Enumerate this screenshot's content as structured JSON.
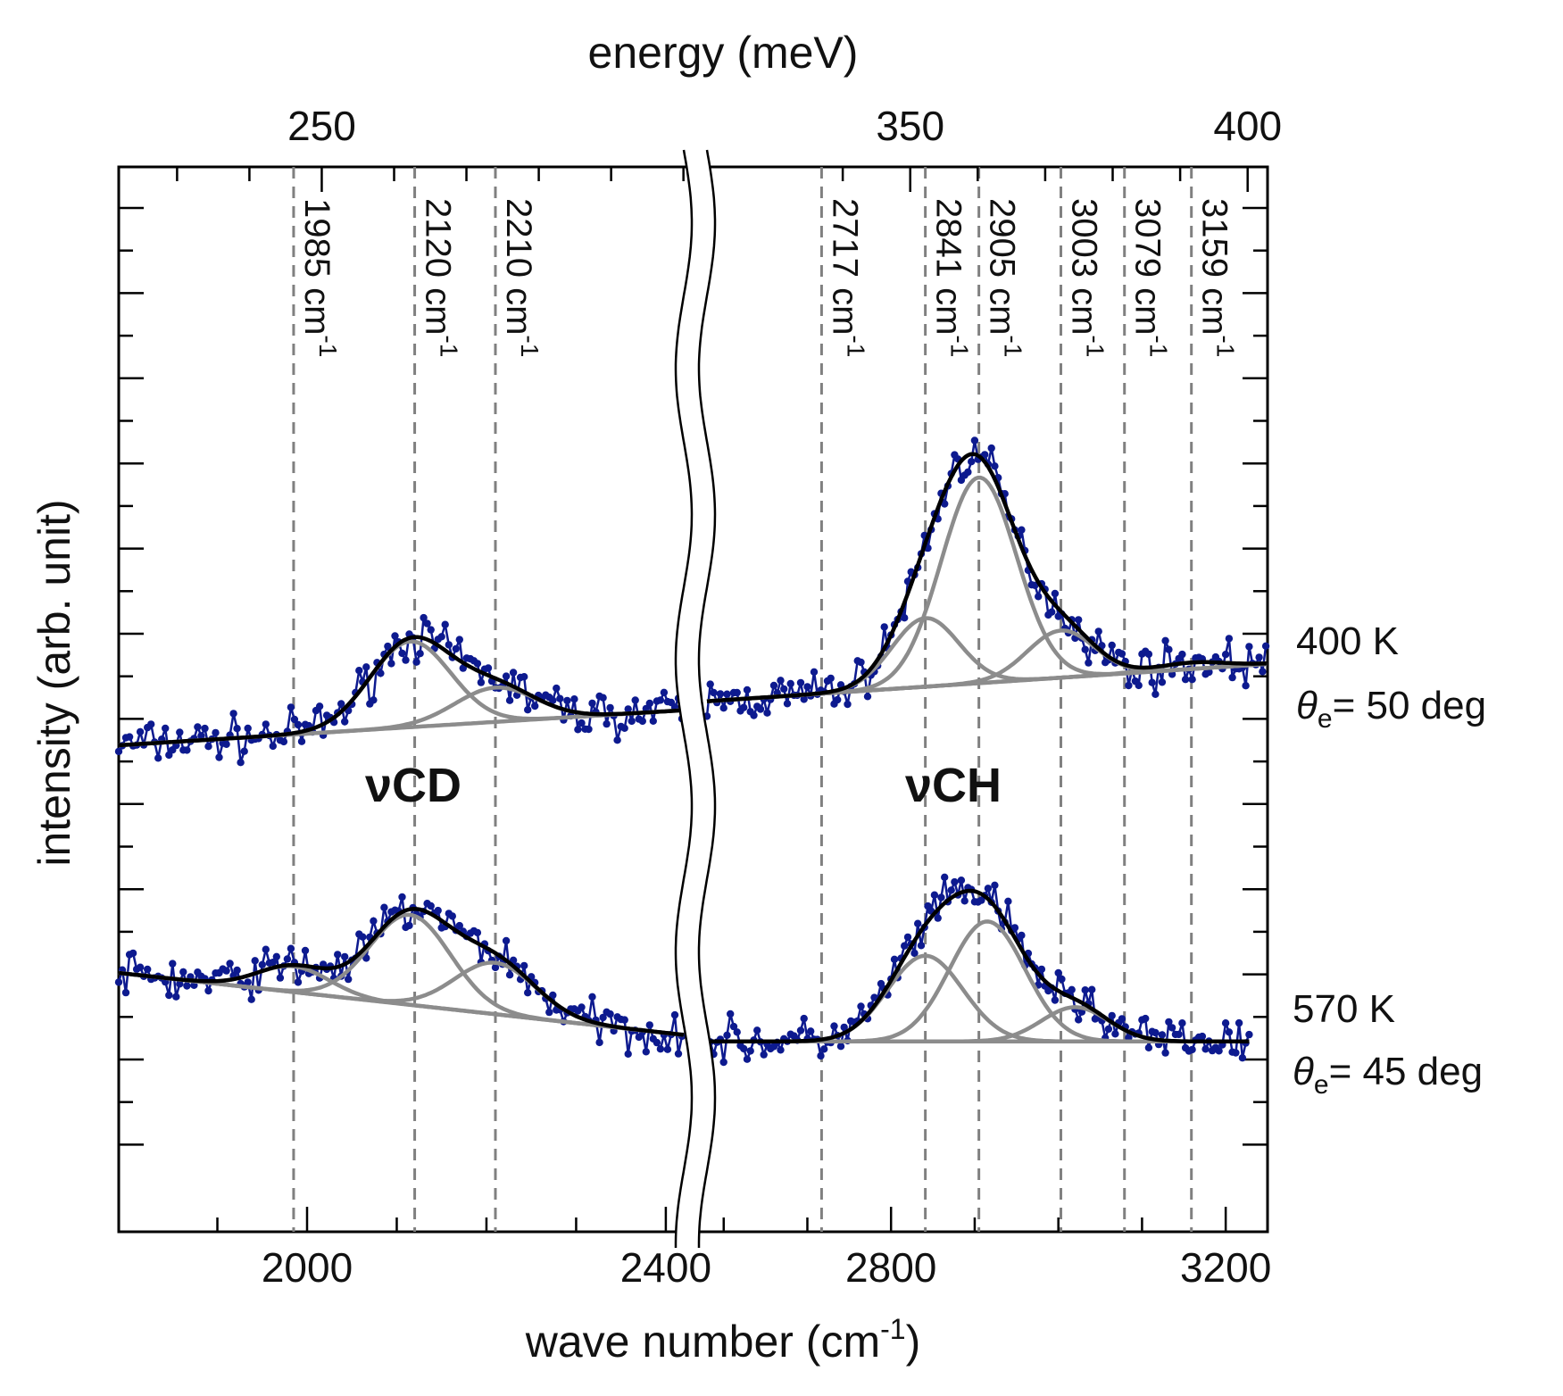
{
  "chart_data": {
    "type": "line",
    "title": "",
    "xlabel_bottom": "wave number (cm",
    "xlabel_bottom_sup": "-1",
    "xlabel_bottom_close": ")",
    "xlabel_top": "energy (meV)",
    "ylabel": "intensity (arb. unit)",
    "axis_break": {
      "from": 2420,
      "to": 2580
    },
    "x_left_range": [
      1790,
      2420
    ],
    "x_right_range": [
      2580,
      3250
    ],
    "bottom_ticks": [
      {
        "value": 2000,
        "label": "2000"
      },
      {
        "value": 2400,
        "label": "2400"
      },
      {
        "value": 2800,
        "label": "2800"
      },
      {
        "value": 3200,
        "label": "3200"
      }
    ],
    "top_ticks": [
      {
        "value": 250,
        "label": "250"
      },
      {
        "value": 350,
        "label": "350"
      },
      {
        "value": 400,
        "label": "400"
      }
    ],
    "peaks": [
      {
        "value": 1985,
        "label": "1985 cm",
        "sup": "-1"
      },
      {
        "value": 2120,
        "label": "2120 cm",
        "sup": "-1"
      },
      {
        "value": 2210,
        "label": "2210 cm",
        "sup": "-1"
      },
      {
        "value": 2717,
        "label": "2717 cm",
        "sup": "-1"
      },
      {
        "value": 2841,
        "label": "2841 cm",
        "sup": "-1"
      },
      {
        "value": 2905,
        "label": "2905 cm",
        "sup": "-1"
      },
      {
        "value": 3003,
        "label": "3003 cm",
        "sup": "-1"
      },
      {
        "value": 3079,
        "label": "3079 cm",
        "sup": "-1"
      },
      {
        "value": 3159,
        "label": "3159 cm",
        "sup": "-1"
      }
    ],
    "band_labels": [
      "νCD",
      "νCH"
    ],
    "colors": {
      "data": "#0d1a8f",
      "fit_total": "#000000",
      "fit_component": "#8c8c8c",
      "dashed": "#808080"
    },
    "series": [
      {
        "name": "400 K",
        "angle_symbol": "θ",
        "angle_sub": "e",
        "angle_text": "= 50 deg",
        "baseline": [
          [
            1790,
            0.0
          ],
          [
            3250,
            1.9
          ]
        ],
        "components": [
          {
            "center": 2115,
            "height": 2.0,
            "width": 45
          },
          {
            "center": 2210,
            "height": 0.8,
            "width": 45
          },
          {
            "center": 2841,
            "height": 1.6,
            "width": 40
          },
          {
            "center": 2905,
            "height": 4.8,
            "width": 45
          },
          {
            "center": 3003,
            "height": 1.1,
            "width": 40
          },
          {
            "center": 3159,
            "height": 0.15,
            "width": 40
          }
        ]
      },
      {
        "name": "570 K",
        "angle_symbol": "θ",
        "angle_sub": "e",
        "angle_text": "= 45 deg",
        "baseline_left": [
          [
            1790,
            0.0
          ],
          [
            2400,
            -1.4
          ]
        ],
        "baseline_right": [
          [
            2600,
            -1.6
          ],
          [
            3230,
            -1.6
          ]
        ],
        "components": [
          {
            "center": 1985,
            "height": 0.6,
            "width": 40
          },
          {
            "center": 2115,
            "height": 2.1,
            "width": 45
          },
          {
            "center": 2210,
            "height": 1.2,
            "width": 45
          },
          {
            "center": 2841,
            "height": 2.0,
            "width": 45
          },
          {
            "center": 2915,
            "height": 2.8,
            "width": 45
          },
          {
            "center": 3020,
            "height": 0.8,
            "width": 40
          }
        ]
      }
    ]
  }
}
